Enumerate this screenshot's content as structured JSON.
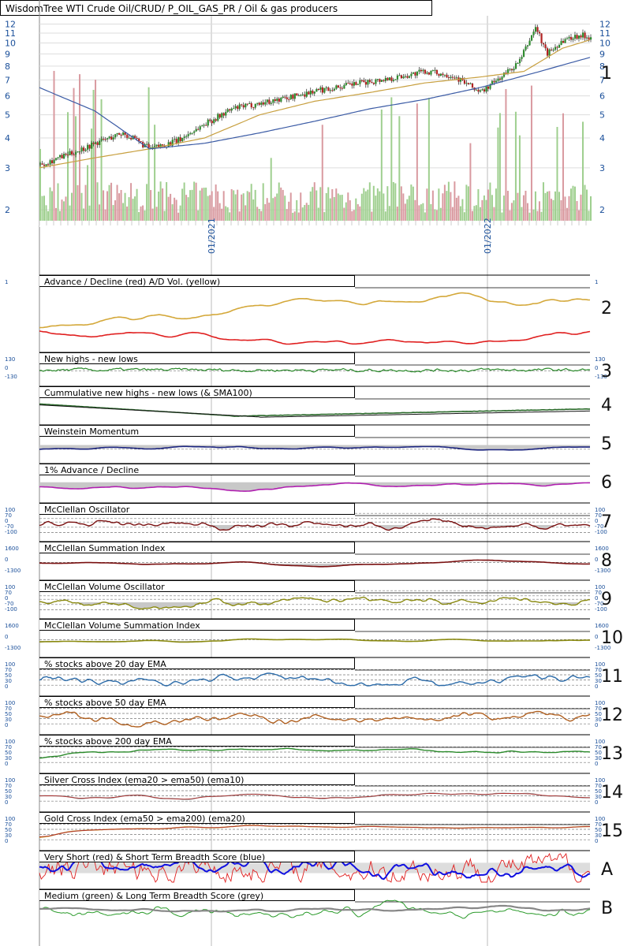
{
  "title": "WisdomTree WTI Crude Oil/CRUD/ P_OIL_GAS_PR / Oil & gas producers",
  "price_panel": {
    "y_ticks": [
      "12",
      "11",
      "10",
      "9",
      "8",
      "7",
      "6",
      "5",
      "4",
      "3",
      "2"
    ],
    "x_labels": [
      "01/2021",
      "01/2022"
    ],
    "number": "1"
  },
  "panels": [
    {
      "number": "2",
      "title": "Advance / Decline (red) A/D Vol. (yellow)",
      "left_axis": [
        "1"
      ],
      "right_axis": [
        "1"
      ]
    },
    {
      "number": "3",
      "title": "New highs - new lows",
      "left_axis": [
        "130",
        "0",
        "-130"
      ],
      "right_axis": [
        "130",
        "0",
        "-130"
      ]
    },
    {
      "number": "4",
      "title": "Cummulative new highs - new lows (& SMA100)",
      "left_axis": [],
      "right_axis": []
    },
    {
      "number": "5",
      "title": "Weinstein Momentum",
      "left_axis": [],
      "right_axis": []
    },
    {
      "number": "6",
      "title": "1% Advance / Decline",
      "left_axis": [],
      "right_axis": []
    },
    {
      "number": "7",
      "title": "McClellan Oscillator",
      "left_axis": [
        "100",
        "70",
        "0",
        "-70",
        "-100"
      ],
      "right_axis": [
        "100",
        "70",
        "0",
        "-70",
        "-100"
      ]
    },
    {
      "number": "8",
      "title": "McClellan Summation Index",
      "left_axis": [
        "1600",
        "0",
        "-1300"
      ],
      "right_axis": [
        "1600",
        "0",
        "-1300"
      ]
    },
    {
      "number": "9",
      "title": "McClellan Volume Oscillator",
      "left_axis": [
        "100",
        "70",
        "0",
        "-70",
        "-100"
      ],
      "right_axis": [
        "100",
        "70",
        "0",
        "-70",
        "-100"
      ]
    },
    {
      "number": "10",
      "title": "McClellan Volume Summation Index",
      "left_axis": [
        "1600",
        "0",
        "-1300"
      ],
      "right_axis": [
        "1600",
        "0",
        "-1300"
      ]
    },
    {
      "number": "11",
      "title": "% stocks above 20 day EMA",
      "left_axis": [
        "100",
        "70",
        "50",
        "30",
        "0"
      ],
      "right_axis": [
        "100",
        "70",
        "50",
        "30",
        "0"
      ]
    },
    {
      "number": "12",
      "title": "% stocks above 50 day EMA",
      "left_axis": [
        "100",
        "70",
        "50",
        "30",
        "0"
      ],
      "right_axis": [
        "100",
        "70",
        "50",
        "30",
        "0"
      ]
    },
    {
      "number": "13",
      "title": "% stocks above 200 day EMA",
      "left_axis": [
        "100",
        "70",
        "50",
        "30",
        "0"
      ],
      "right_axis": [
        "100",
        "70",
        "50",
        "30",
        "0"
      ]
    },
    {
      "number": "14",
      "title": "Silver Cross Index (ema20 > ema50) (ema10)",
      "left_axis": [
        "100",
        "70",
        "50",
        "30",
        "0"
      ],
      "right_axis": [
        "100",
        "70",
        "50",
        "30",
        "0"
      ]
    },
    {
      "number": "15",
      "title": "Gold Cross Index (ema50 > ema200) (ema20)",
      "left_axis": [
        "100",
        "70",
        "50",
        "30",
        "0"
      ],
      "right_axis": [
        "100",
        "70",
        "50",
        "30",
        "0"
      ]
    },
    {
      "number": "A",
      "title": "Very Short (red) & Short Term Breadth Score (blue)",
      "left_axis": [],
      "right_axis": []
    },
    {
      "number": "B",
      "title": "Medium (green) & Long Term Breadth Score (grey)",
      "left_axis": [],
      "right_axis": []
    }
  ],
  "chart_data": {
    "type": "line",
    "title": "WisdomTree WTI Crude Oil/CRUD/ P_OIL_GAS_PR / Oil & gas producers",
    "y_scale": "log",
    "ylim": [
      1.8,
      13
    ],
    "price_path": [
      [
        0,
        3.1
      ],
      [
        0.05,
        3.4
      ],
      [
        0.1,
        3.8
      ],
      [
        0.15,
        4.2
      ],
      [
        0.2,
        3.6
      ],
      [
        0.25,
        3.9
      ],
      [
        0.3,
        4.6
      ],
      [
        0.35,
        5.3
      ],
      [
        0.4,
        5.6
      ],
      [
        0.45,
        5.9
      ],
      [
        0.5,
        6.3
      ],
      [
        0.55,
        6.6
      ],
      [
        0.6,
        6.9
      ],
      [
        0.65,
        7.2
      ],
      [
        0.7,
        7.6
      ],
      [
        0.75,
        7.3
      ],
      [
        0.8,
        6.2
      ],
      [
        0.83,
        7.0
      ],
      [
        0.87,
        8.3
      ],
      [
        0.9,
        11.7
      ],
      [
        0.92,
        9.0
      ],
      [
        0.95,
        10.3
      ],
      [
        0.98,
        10.8
      ],
      [
        1.0,
        10.6
      ]
    ],
    "sma_yellow": [
      [
        0,
        3.0
      ],
      [
        0.1,
        3.3
      ],
      [
        0.2,
        3.6
      ],
      [
        0.3,
        4.0
      ],
      [
        0.4,
        5.0
      ],
      [
        0.5,
        5.7
      ],
      [
        0.6,
        6.2
      ],
      [
        0.7,
        6.8
      ],
      [
        0.8,
        7.2
      ],
      [
        0.88,
        7.6
      ],
      [
        0.95,
        9.5
      ],
      [
        1.0,
        10.3
      ]
    ],
    "sma_blue": [
      [
        0,
        6.5
      ],
      [
        0.1,
        5.2
      ],
      [
        0.2,
        3.6
      ],
      [
        0.3,
        3.8
      ],
      [
        0.4,
        4.2
      ],
      [
        0.5,
        4.7
      ],
      [
        0.6,
        5.3
      ],
      [
        0.7,
        5.8
      ],
      [
        0.8,
        6.5
      ],
      [
        0.9,
        7.5
      ],
      [
        1.0,
        8.7
      ]
    ],
    "colors": {
      "price_up": "#2e8b2e",
      "price_down": "#b22222",
      "sma_short": "#c8a040",
      "sma_long": "#3b5ba5",
      "volume_up": "#9fcf8f",
      "volume_down": "#d99aa0"
    }
  }
}
